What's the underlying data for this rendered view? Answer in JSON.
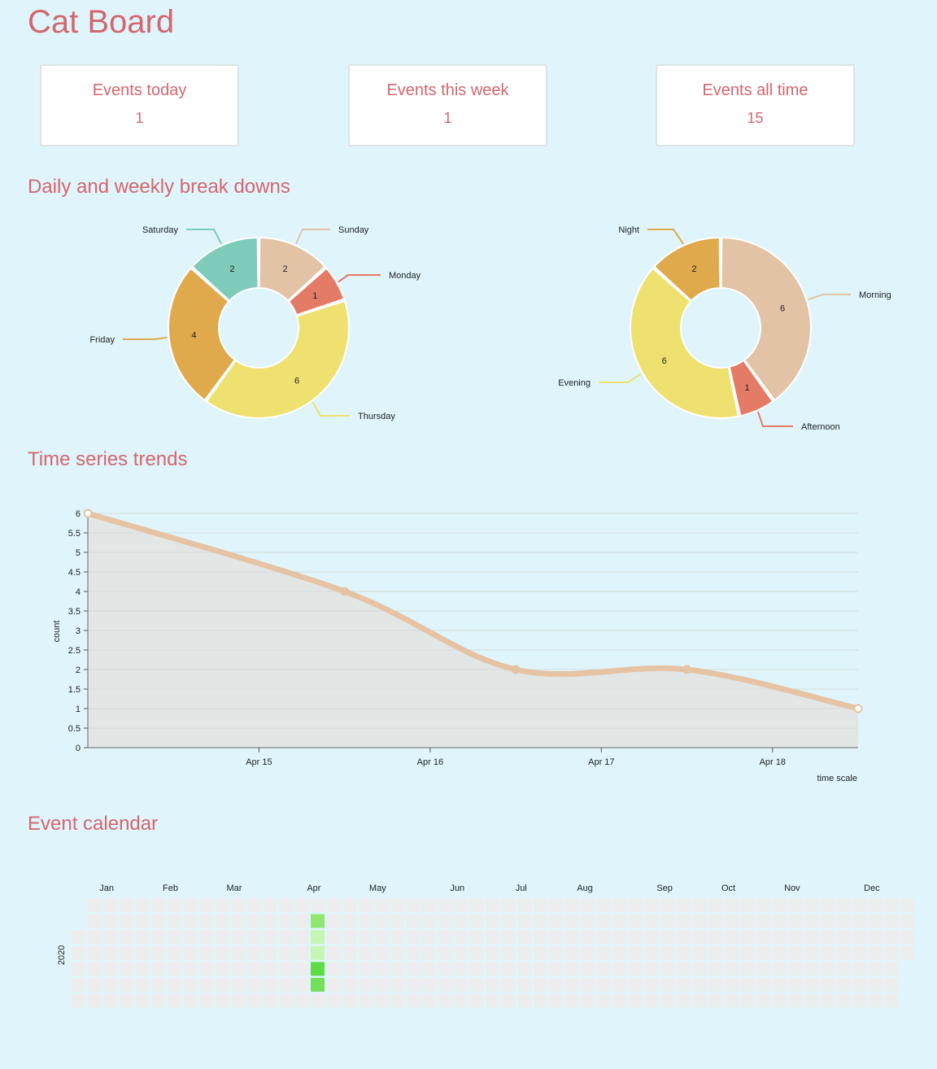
{
  "page": {
    "title": "Cat Board"
  },
  "kpis": [
    {
      "label": "Events today",
      "value": "1"
    },
    {
      "label": "Events this week",
      "value": "1"
    },
    {
      "label": "Events all time",
      "value": "15"
    }
  ],
  "sections": {
    "breakdowns": "Daily and weekly break downs",
    "trends": "Time series trends",
    "calendar": "Event calendar"
  },
  "colors": {
    "accent": "#d4666d",
    "background": "#dff5fb",
    "line": "#e6c3a3",
    "area": "#e2e6e5",
    "empty_cell": "#ededed"
  },
  "chart_data": [
    {
      "type": "pie",
      "variant": "donut",
      "slices": [
        {
          "label": "Sunday",
          "value": 2,
          "color": "#e3c3a6"
        },
        {
          "label": "Monday",
          "value": 1,
          "color": "#e47b67"
        },
        {
          "label": "Thursday",
          "value": 6,
          "color": "#efe170"
        },
        {
          "label": "Friday",
          "value": 4,
          "color": "#e0a94b"
        },
        {
          "label": "Saturday",
          "value": 2,
          "color": "#7fcbba"
        }
      ]
    },
    {
      "type": "pie",
      "variant": "donut",
      "slices": [
        {
          "label": "Morning",
          "value": 6,
          "color": "#e3c3a6"
        },
        {
          "label": "Afternoon",
          "value": 1,
          "color": "#e47b67"
        },
        {
          "label": "Evening",
          "value": 6,
          "color": "#efe170"
        },
        {
          "label": "Night",
          "value": 2,
          "color": "#e0a94b"
        }
      ]
    },
    {
      "type": "area",
      "x": [
        "2020-04-14",
        "2020-04-15 12:00",
        "2020-04-16 12:00",
        "2020-04-17 12:00",
        "2020-04-18 12:00"
      ],
      "y": [
        6,
        4,
        2,
        2,
        1
      ],
      "ylabel": "count",
      "xlabel": "time scale",
      "ylim": [
        0,
        6
      ],
      "yticks": [
        "0",
        "0.5",
        "1",
        "1.5",
        "2",
        "2.5",
        "3",
        "3.5",
        "4",
        "4.5",
        "5",
        "5.5",
        "6"
      ],
      "xticks": [
        "Apr 15",
        "Apr 16",
        "Apr 17",
        "Apr 18"
      ],
      "grid": true
    },
    {
      "type": "heatmap",
      "year": "2020",
      "months": [
        "Jan",
        "Feb",
        "Mar",
        "Apr",
        "May",
        "Jun",
        "Jul",
        "Aug",
        "Sep",
        "Oct",
        "Nov",
        "Dec"
      ],
      "events": [
        {
          "date": "2020-04-14",
          "value": 6,
          "color": "#8ee872"
        },
        {
          "date": "2020-04-15",
          "value": 2,
          "color": "#c7f5b4"
        },
        {
          "date": "2020-04-16",
          "value": 2,
          "color": "#c7f5b4"
        },
        {
          "date": "2020-04-17",
          "value": 4,
          "color": "#5fdb48"
        },
        {
          "date": "2020-04-18",
          "value": 1,
          "color": "#74e05a"
        }
      ]
    }
  ]
}
